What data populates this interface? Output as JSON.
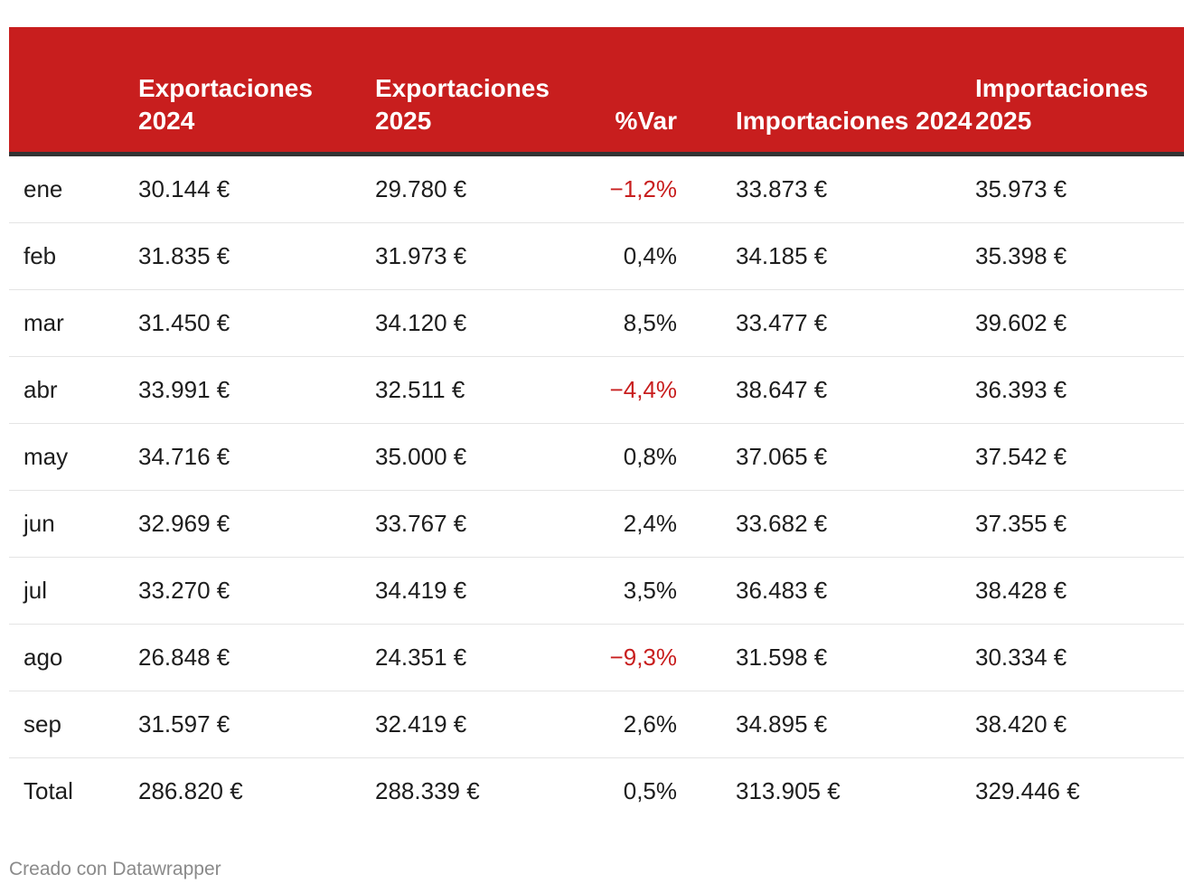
{
  "table": {
    "headers": {
      "month": "",
      "exp24": "Exportaciones 2024",
      "exp25": "Exportaciones 2025",
      "var": "%Var",
      "imp24": "Importaciones 2024",
      "imp25": "Importaciones 2025"
    },
    "rows": [
      {
        "month": "ene",
        "exp24": "30.144 €",
        "exp25": "29.780 €",
        "var": "−1,2%",
        "imp24": "33.873 €",
        "imp25": "35.973 €"
      },
      {
        "month": "feb",
        "exp24": "31.835 €",
        "exp25": "31.973 €",
        "var": "0,4%",
        "imp24": "34.185 €",
        "imp25": "35.398 €"
      },
      {
        "month": "mar",
        "exp24": "31.450 €",
        "exp25": "34.120 €",
        "var": "8,5%",
        "imp24": "33.477 €",
        "imp25": "39.602 €"
      },
      {
        "month": "abr",
        "exp24": "33.991 €",
        "exp25": "32.511 €",
        "var": "−4,4%",
        "imp24": "38.647 €",
        "imp25": "36.393 €"
      },
      {
        "month": "may",
        "exp24": "34.716 €",
        "exp25": "35.000 €",
        "var": "0,8%",
        "imp24": "37.065 €",
        "imp25": "37.542 €"
      },
      {
        "month": "jun",
        "exp24": "32.969 €",
        "exp25": "33.767 €",
        "var": "2,4%",
        "imp24": "33.682 €",
        "imp25": "37.355 €"
      },
      {
        "month": "jul",
        "exp24": "33.270 €",
        "exp25": "34.419 €",
        "var": "3,5%",
        "imp24": "36.483 €",
        "imp25": "38.428 €"
      },
      {
        "month": "ago",
        "exp24": "26.848 €",
        "exp25": "24.351 €",
        "var": "−9,3%",
        "imp24": "31.598 €",
        "imp25": "30.334 €"
      },
      {
        "month": "sep",
        "exp24": "31.597 €",
        "exp25": "32.419 €",
        "var": "2,6%",
        "imp24": "34.895 €",
        "imp25": "38.420 €"
      },
      {
        "month": "Total",
        "exp24": "286.820 €",
        "exp25": "288.339 €",
        "var": "0,5%",
        "imp24": "313.905 €",
        "imp25": "329.446 €"
      }
    ]
  },
  "colors": {
    "header_bg": "#c81e1e",
    "negative": "#c81e1e"
  },
  "footer": {
    "credit": "Creado con Datawrapper"
  }
}
